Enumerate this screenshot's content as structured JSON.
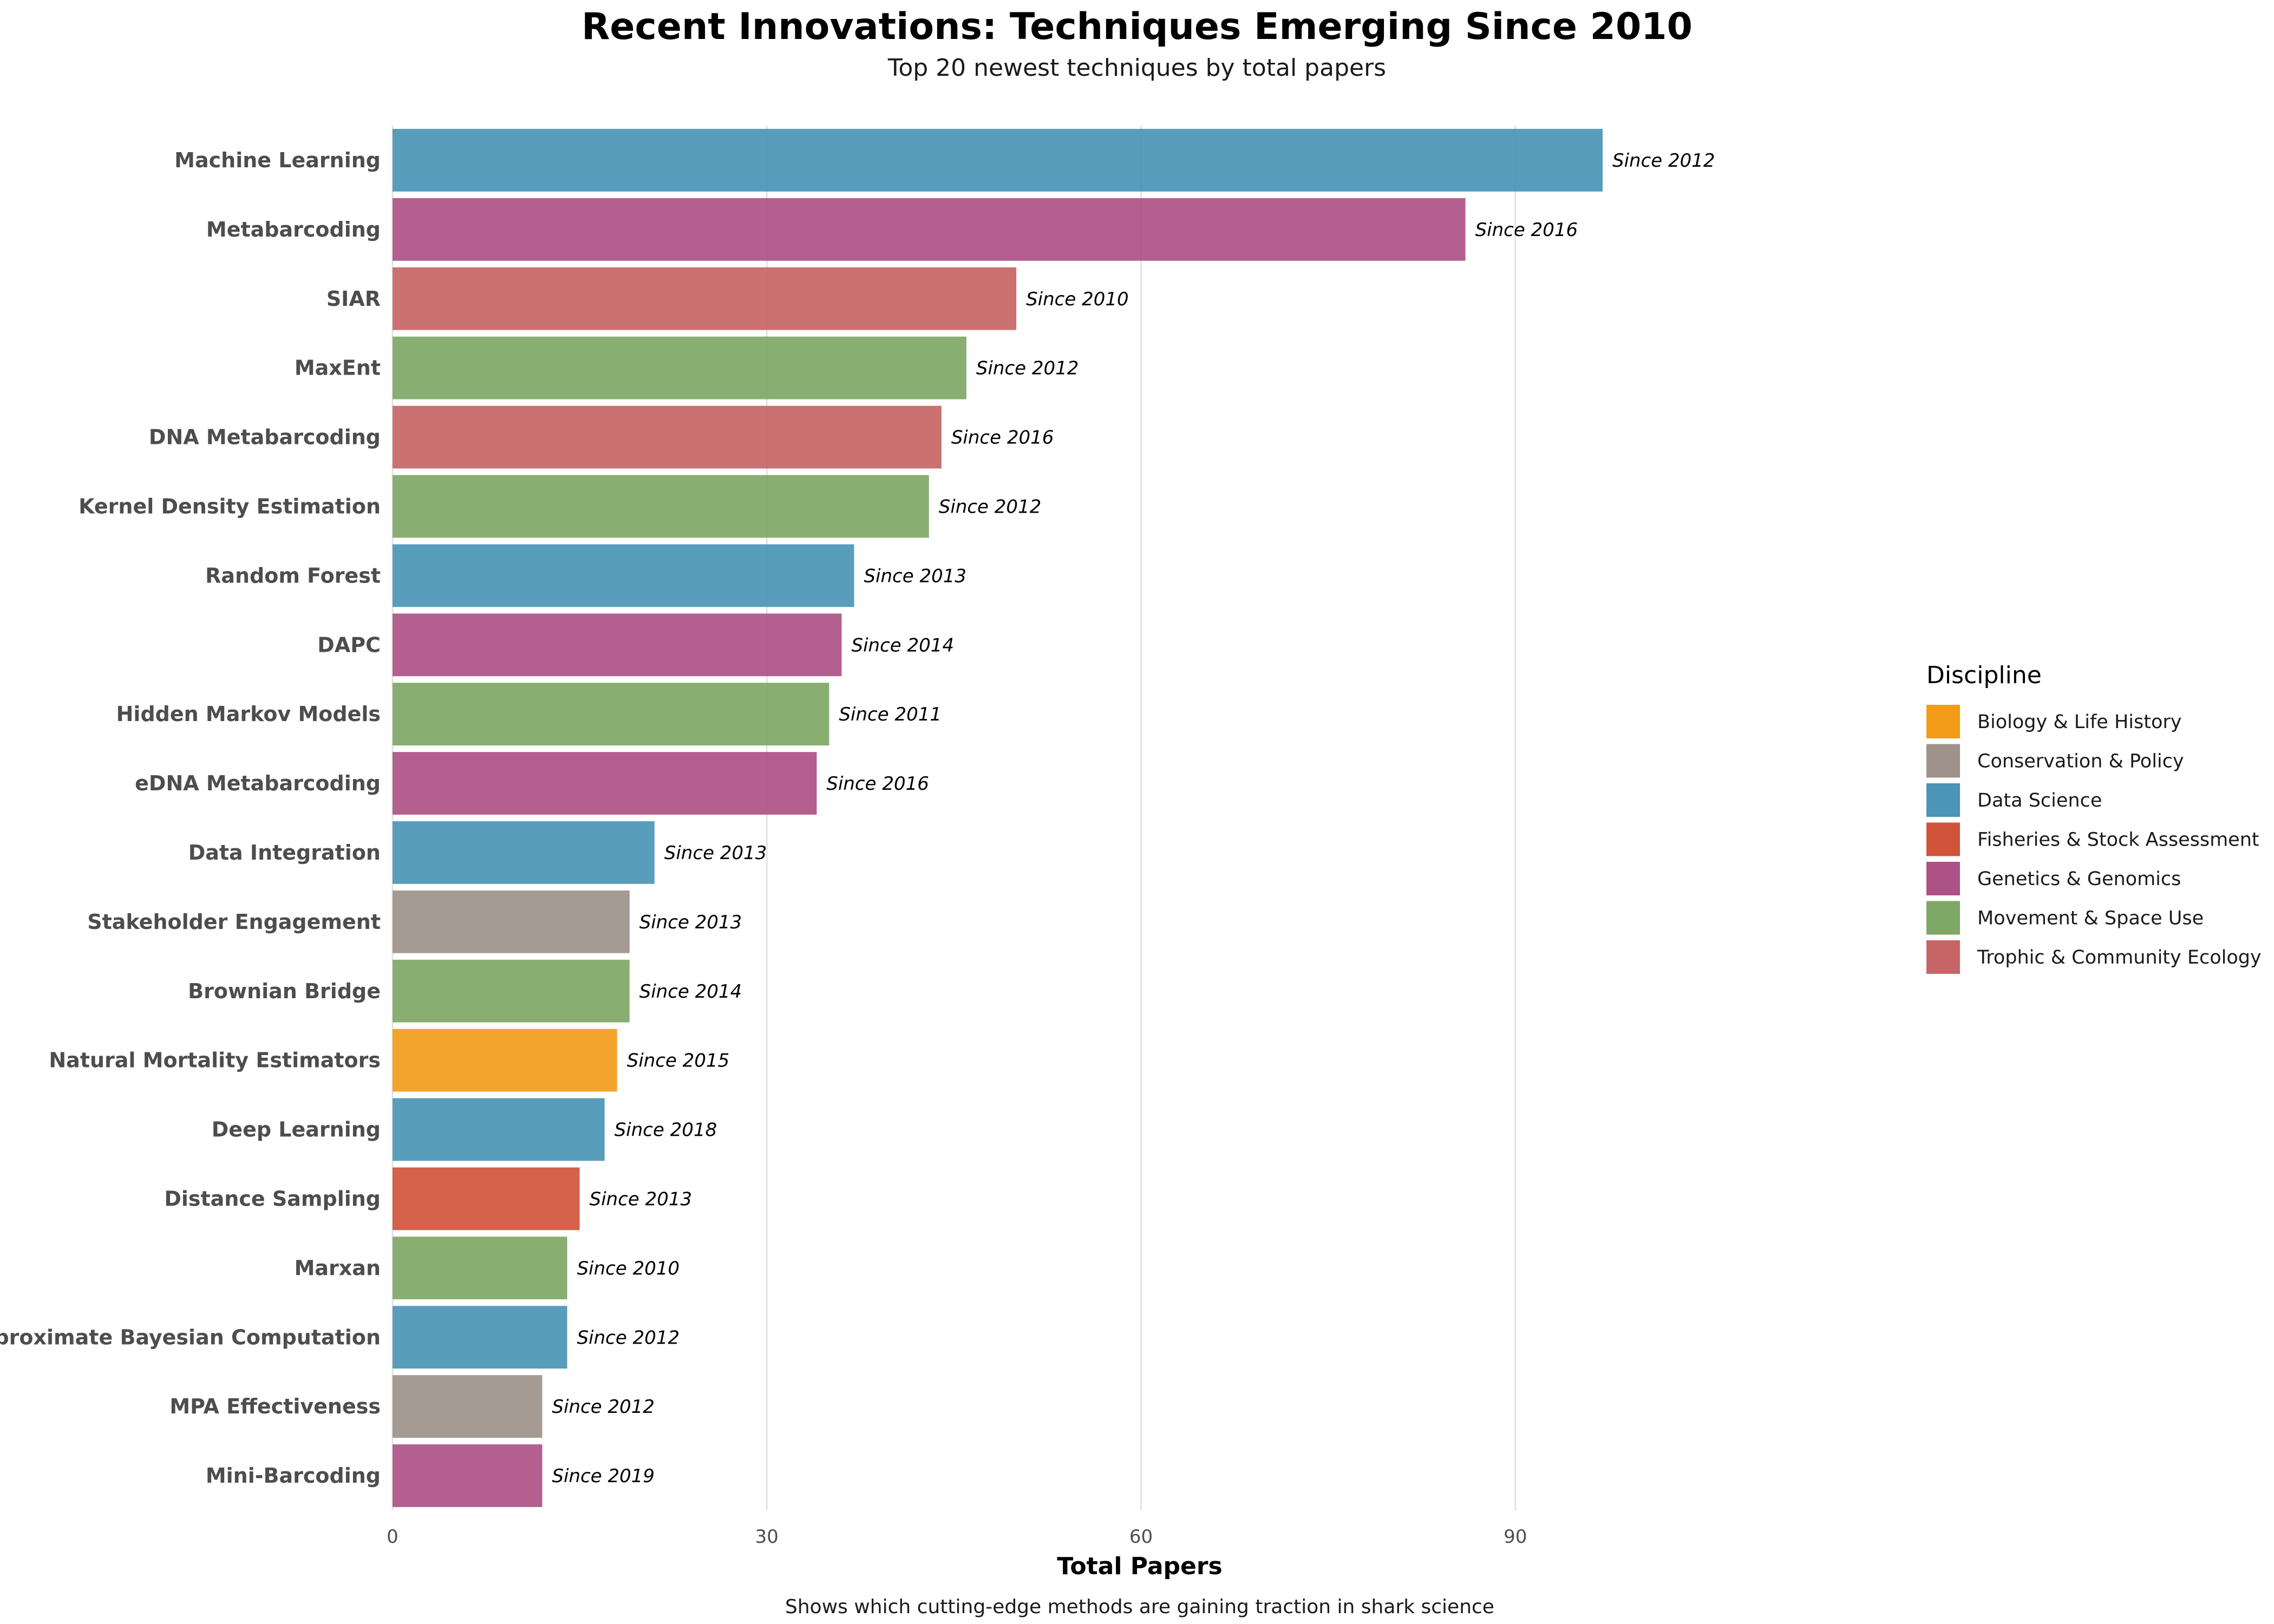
{
  "chart_data": {
    "type": "bar",
    "orientation": "horizontal",
    "title": "Recent Innovations: Techniques Emerging Since 2010",
    "subtitle": "Top 20 newest techniques by total papers",
    "xlabel": "Total Papers",
    "ylabel": "",
    "caption": "Shows which cutting-edge methods are gaining traction in shark science",
    "xlim": [
      0,
      120
    ],
    "xticks": [
      0,
      30,
      60,
      90
    ],
    "xtick_labels": [
      "0",
      "30",
      "60",
      "90"
    ],
    "grid": "vertical major",
    "legend": {
      "title": "Discipline",
      "position": "right",
      "entries": [
        {
          "name": "Biology & Life History",
          "color": "#F29C1A"
        },
        {
          "name": "Conservation & Policy",
          "color": "#9E928A"
        },
        {
          "name": "Data Science",
          "color": "#4B95B6"
        },
        {
          "name": "Fisheries & Stock Assessment",
          "color": "#D0543A"
        },
        {
          "name": "Genetics & Genomics",
          "color": "#AC5287"
        },
        {
          "name": "Movement & Space Use",
          "color": "#7FA766"
        },
        {
          "name": "Trophic & Community Ecology",
          "color": "#C76566"
        }
      ]
    },
    "bars": [
      {
        "category": "Machine Learning",
        "value": 97,
        "discipline": "Data Science",
        "label": "Since 2012"
      },
      {
        "category": "Metabarcoding",
        "value": 86,
        "discipline": "Genetics & Genomics",
        "label": "Since 2016"
      },
      {
        "category": "SIAR",
        "value": 50,
        "discipline": "Trophic & Community Ecology",
        "label": "Since 2010"
      },
      {
        "category": "MaxEnt",
        "value": 46,
        "discipline": "Movement & Space Use",
        "label": "Since 2012"
      },
      {
        "category": "DNA Metabarcoding",
        "value": 44,
        "discipline": "Trophic & Community Ecology",
        "label": "Since 2016"
      },
      {
        "category": "Kernel Density Estimation",
        "value": 43,
        "discipline": "Movement & Space Use",
        "label": "Since 2012"
      },
      {
        "category": "Random Forest",
        "value": 37,
        "discipline": "Data Science",
        "label": "Since 2013"
      },
      {
        "category": "DAPC",
        "value": 36,
        "discipline": "Genetics & Genomics",
        "label": "Since 2014"
      },
      {
        "category": "Hidden Markov Models",
        "value": 35,
        "discipline": "Movement & Space Use",
        "label": "Since 2011"
      },
      {
        "category": "eDNA Metabarcoding",
        "value": 34,
        "discipline": "Genetics & Genomics",
        "label": "Since 2016"
      },
      {
        "category": "Data Integration",
        "value": 21,
        "discipline": "Data Science",
        "label": "Since 2013"
      },
      {
        "category": "Stakeholder Engagement",
        "value": 19,
        "discipline": "Conservation & Policy",
        "label": "Since 2013"
      },
      {
        "category": "Brownian Bridge",
        "value": 19,
        "discipline": "Movement & Space Use",
        "label": "Since 2014"
      },
      {
        "category": "Natural Mortality Estimators",
        "value": 18,
        "discipline": "Biology & Life History",
        "label": "Since 2015"
      },
      {
        "category": "Deep Learning",
        "value": 17,
        "discipline": "Data Science",
        "label": "Since 2018"
      },
      {
        "category": "Distance Sampling",
        "value": 15,
        "discipline": "Fisheries & Stock Assessment",
        "label": "Since 2013"
      },
      {
        "category": "Marxan",
        "value": 14,
        "discipline": "Movement & Space Use",
        "label": "Since 2010"
      },
      {
        "category": "Approximate Bayesian Computation",
        "value": 14,
        "discipline": "Data Science",
        "label": "Since 2012"
      },
      {
        "category": "MPA Effectiveness",
        "value": 12,
        "discipline": "Conservation & Policy",
        "label": "Since 2012"
      },
      {
        "category": "Mini-Barcoding",
        "value": 12,
        "discipline": "Genetics & Genomics",
        "label": "Since 2019"
      }
    ]
  }
}
